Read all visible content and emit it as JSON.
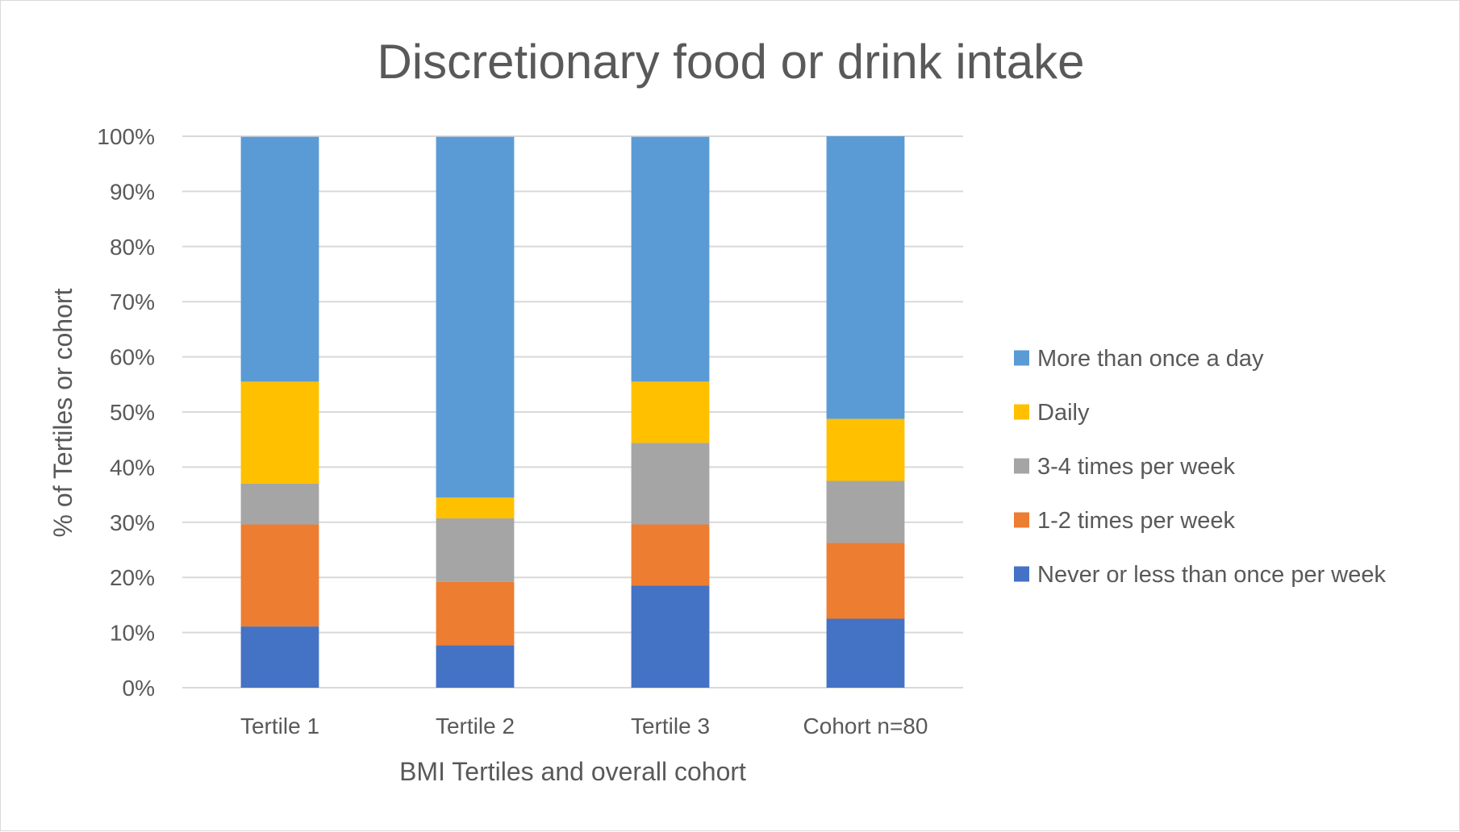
{
  "chart_data": {
    "type": "bar",
    "stacked": true,
    "title": "Discretionary food or drink intake",
    "xlabel": "BMI Tertiles and overall cohort",
    "ylabel": "% of Tertiles or cohort",
    "categories": [
      "Tertile 1",
      "Tertile 2",
      "Tertile 3",
      "Cohort n=80"
    ],
    "ylim": [
      0,
      100
    ],
    "y_ticks": [
      0,
      10,
      20,
      30,
      40,
      50,
      60,
      70,
      80,
      90,
      100
    ],
    "y_tick_labels": [
      "0%",
      "10%",
      "20%",
      "30%",
      "40%",
      "50%",
      "60%",
      "70%",
      "80%",
      "90%",
      "100%"
    ],
    "grid": true,
    "legend_position": "right",
    "series": [
      {
        "name": "Never or less than once per week",
        "color": "#4472C4",
        "values": [
          11.1,
          7.7,
          18.5,
          12.5
        ]
      },
      {
        "name": "1-2 times per week",
        "color": "#ED7D31",
        "values": [
          18.5,
          11.5,
          11.1,
          13.75
        ]
      },
      {
        "name": "3-4 times per week",
        "color": "#A5A5A5",
        "values": [
          7.4,
          11.5,
          14.8,
          11.25
        ]
      },
      {
        "name": "Daily",
        "color": "#FFC000",
        "values": [
          18.5,
          3.8,
          11.1,
          11.25
        ]
      },
      {
        "name": "More than once a day",
        "color": "#5B9BD5",
        "values": [
          44.4,
          65.4,
          44.4,
          51.25
        ]
      }
    ],
    "legend_order": [
      4,
      3,
      2,
      1,
      0
    ]
  }
}
